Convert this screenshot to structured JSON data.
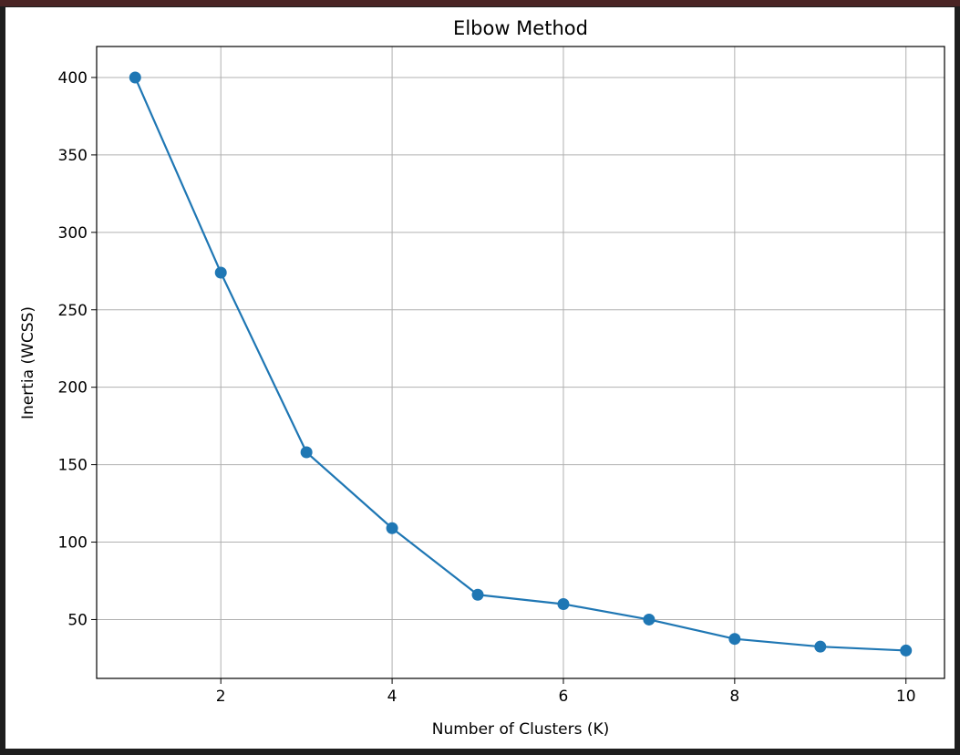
{
  "window": {
    "frame_color": "#1e1e1e",
    "strip_color": "#4a2424"
  },
  "chart_data": {
    "type": "line",
    "title": "Elbow Method",
    "xlabel": "Number of Clusters (K)",
    "ylabel": "Inertia (WCSS)",
    "x": [
      1,
      2,
      3,
      4,
      5,
      6,
      7,
      8,
      9,
      10
    ],
    "series": [
      {
        "values": [
          400,
          274,
          158,
          109,
          66,
          60,
          50,
          37.5,
          32.5,
          30
        ],
        "color": "#1f77b4",
        "marker": "circle"
      }
    ],
    "xlim": [
      0.55,
      10.45
    ],
    "ylim": [
      12,
      420
    ],
    "xticks": [
      2,
      4,
      6,
      8,
      10
    ],
    "yticks": [
      50,
      100,
      150,
      200,
      250,
      300,
      350,
      400
    ],
    "grid": true,
    "legend": "none"
  }
}
